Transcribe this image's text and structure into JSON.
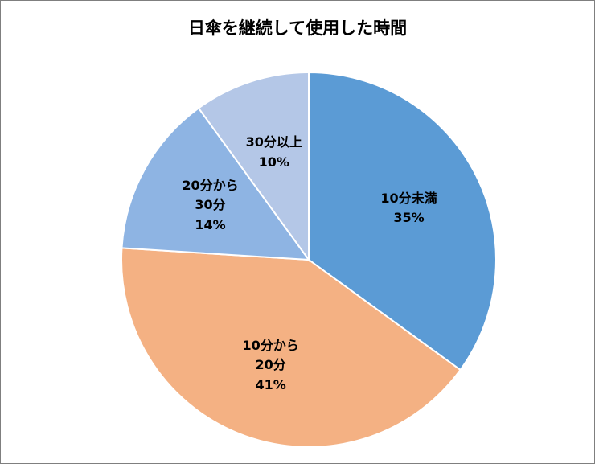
{
  "chart_data": {
    "type": "pie",
    "title": "日傘を継続して使用した時間",
    "categories": [
      "10分未満",
      "10分から20分",
      "20分から30分",
      "30分以上"
    ],
    "values": [
      35,
      41,
      14,
      10
    ],
    "value_labels": [
      "35%",
      "41%",
      "14%",
      "10%"
    ],
    "colors": [
      "#5b9bd5",
      "#f4b183",
      "#8eb4e3",
      "#b4c7e7"
    ]
  }
}
